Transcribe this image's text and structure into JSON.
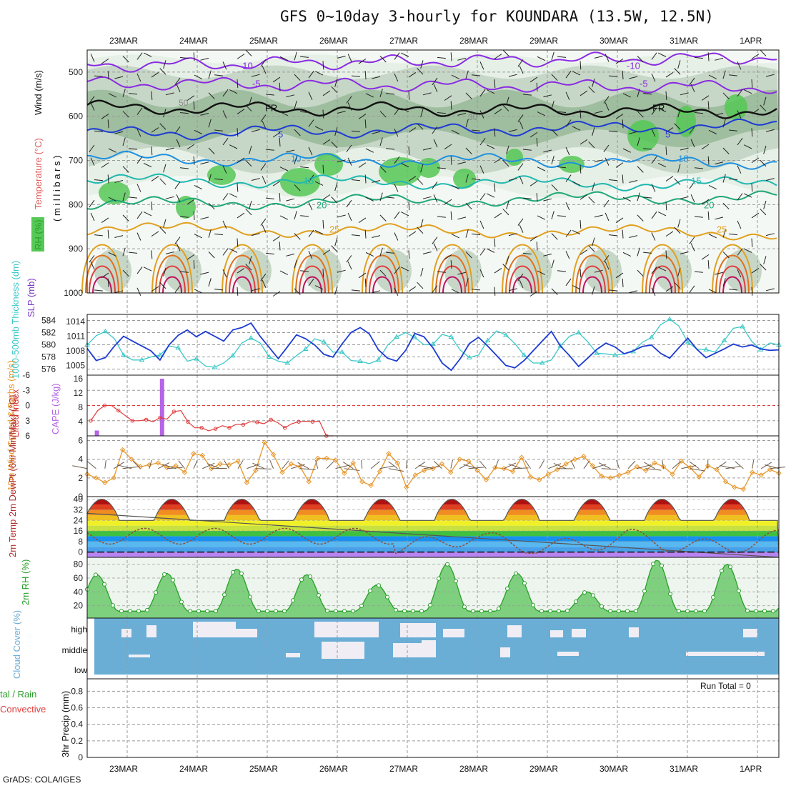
{
  "title": "GFS 0~10day 3-hourly for KOUNDARA (13.5W, 12.5N)",
  "footer": "GrADS: COLA/IGES",
  "run_total": "Run Total = 0",
  "colors": {
    "grid": "#9a9a9a",
    "rh_light": "#e6f0e6",
    "rh_mid": "#c7d7c7",
    "rh_dark": "#8fb28f",
    "rh_green": "#55c855",
    "slp": "#1e3cd2",
    "thickness": "#3cc8c8",
    "lifted": "#e03c3c",
    "cape": "#b464e6",
    "wind10m": "#e8962a",
    "rh2m": "#2aa02a",
    "cloud": "#6aaed6",
    "cloud_gap": "#f0eef4"
  },
  "chart_data": [
    {
      "type": "line",
      "panel": "Wind / Temperature / RH cross-section",
      "ylabel_parts": [
        "RH (%)",
        "Temperature (°C)",
        "Wind (m/s)"
      ],
      "ylabel_sub": "( m i l l i b a r s )",
      "x_dates": [
        "23MAR",
        "24MAR",
        "25MAR",
        "26MAR",
        "27MAR",
        "28MAR",
        "29MAR",
        "30MAR",
        "31MAR",
        "1APR"
      ],
      "y_ticks": [
        500,
        600,
        700,
        800,
        900,
        1000
      ],
      "ylim": [
        450,
        1000
      ],
      "isotherms": [
        {
          "label": "-10",
          "level_mb": 485,
          "color": "#8a2be2"
        },
        {
          "label": "-5",
          "level_mb": 525,
          "color": "#8a2be2"
        },
        {
          "label": "FR",
          "level_mb": 580,
          "color": "#111111"
        },
        {
          "label": "5",
          "level_mb": 640,
          "color": "#1e3cd2"
        },
        {
          "label": "10",
          "level_mb": 695,
          "color": "#1e90e0"
        },
        {
          "label": "15",
          "level_mb": 745,
          "color": "#20b8b0"
        },
        {
          "label": "20",
          "level_mb": 800,
          "color": "#20a878"
        },
        {
          "label": "25",
          "level_mb": 855,
          "color": "#e0a020"
        }
      ],
      "rh_contour_labels": [
        "30",
        "50"
      ]
    },
    {
      "type": "line",
      "panel": "SLP and 1000-500mb thickness",
      "ylabel_left": "1000-500mb Thickness (dm)",
      "ylabel_right": "SLP (mb)",
      "thickness_ticks": [
        576,
        578,
        580,
        582,
        584
      ],
      "slp_ticks": [
        1005,
        1008,
        1011,
        1014
      ],
      "series": [
        {
          "name": "SLP (mb)",
          "values": [
            1008.5,
            1006,
            1006.6,
            1009,
            1011,
            1010,
            1009,
            1008,
            1006.1,
            1009.2,
            1011.2,
            1012.3,
            1010.9,
            1012,
            1011,
            1010,
            1012.3,
            1012.8,
            1013.7,
            1011,
            1008.7,
            1006.4,
            1008.8,
            1011.3,
            1010.5,
            1009.2,
            1007.3,
            1006.7,
            1009.4,
            1011.8,
            1012.8,
            1011.5,
            1008.2,
            1006.5,
            1005.9,
            1008.1,
            1011.6,
            1010.9,
            1008.6,
            1005.5,
            1004,
            1006.4,
            1009.5,
            1010.8,
            1009,
            1007,
            1005,
            1004.5,
            1006,
            1008,
            1010,
            1012,
            1009,
            1007,
            1004.8,
            1006.5,
            1008.3,
            1009.6,
            1008.8,
            1007.4,
            1008,
            1008.9,
            1009.2,
            1007.5,
            1006.5,
            1008.6,
            1010.6,
            1008.3,
            1006.6,
            1007.5,
            1008.4,
            1009.4,
            1008.8,
            1009.2,
            1008.4,
            1008.1,
            1008.2
          ]
        },
        {
          "name": "Thickness (dm)",
          "values": [
            580,
            581.5,
            582.2,
            581,
            578.3,
            577.5,
            577.5,
            578,
            578.3,
            579.8,
            579.5,
            577.3,
            577.7,
            576.5,
            576.3,
            577,
            578.2,
            580.3,
            581.1,
            580.3,
            578,
            577.3,
            577,
            578.2,
            579.3,
            581,
            580.5,
            578.8,
            578.8,
            577.4,
            577.3,
            576.9,
            577.5,
            579.9,
            581.3,
            582,
            581.2,
            580,
            580.1,
            581.7,
            581.3,
            579.1,
            577.9,
            578.3,
            580.7,
            582.3,
            581.6,
            580.2,
            578.3,
            577,
            577,
            577.5,
            579.8,
            581.4,
            582,
            580.5,
            578.6,
            578.5,
            578.3,
            578.5,
            578.9,
            580.4,
            581.2,
            583.3,
            584.2,
            583.1,
            580.4,
            579.3,
            579.2,
            578.8,
            580.7,
            582.7,
            583,
            580.6,
            579.2,
            580.3,
            580
          ]
        }
      ]
    },
    {
      "type": "bar",
      "panel": "Lifted Index and CAPE",
      "ylabel_left": "Lifted Index",
      "ylabel_right": "CAPE (J/kg)",
      "li_ticks": [
        "-6",
        "-3",
        "0",
        "3",
        "6"
      ],
      "cape_ticks": [
        4,
        8,
        12,
        16
      ],
      "lifted_index": [
        3,
        1,
        0,
        0,
        1,
        2,
        3,
        3,
        2.8,
        3.2,
        2.4,
        2.7,
        1.2,
        1,
        3.2,
        4.4,
        4.4,
        5,
        4.6,
        4,
        4.4,
        3.7,
        3.8,
        3.2,
        3.3,
        3.6,
        2.8,
        3.4,
        4.4,
        3.6,
        3.2,
        3.1,
        3.2,
        3.1,
        6,
        6
      ],
      "cape": [
        {
          "time_index": 1,
          "value": 1.5
        },
        {
          "time_index": 13,
          "value": 16
        }
      ]
    },
    {
      "type": "line",
      "panel": "10m Wind Speed & Barbs",
      "ylabel": "10m Wind Speed & Barbs (m/s)",
      "y_ticks": [
        0,
        2,
        4,
        6
      ],
      "series": [
        {
          "name": "10m wind speed",
          "values": [
            2.4,
            2,
            1.5,
            2,
            5,
            4,
            3.2,
            3.4,
            3.6,
            3.1,
            3.3,
            2.6,
            4.6,
            4.4,
            3,
            3.5,
            3.4,
            3.8,
            1.5,
            2.8,
            5.8,
            4.5,
            2.6,
            3.5,
            3.2,
            1.6,
            4.1,
            4.1,
            3.9,
            2.5,
            3.6,
            1.6,
            1.2,
            2.7,
            4.6,
            3.6,
            1,
            2.3,
            2.8,
            3,
            3.5,
            2.6,
            4,
            3.8,
            2.8,
            1.8,
            3.1,
            3,
            2.7,
            4.2,
            2.1,
            1.8,
            2.4,
            2.9,
            3.5,
            4,
            4.3,
            3.3,
            2.2,
            2,
            2.3,
            2.6,
            3.2,
            2.8,
            3.6,
            3.2,
            2.4,
            3.8,
            3.1,
            2.1,
            3.3,
            2.9,
            1.6,
            1,
            0.8,
            2.6,
            2.3,
            2.9,
            2.5
          ]
        }
      ]
    },
    {
      "type": "area",
      "panel": "2m Temp / 2m DewPt (6hr Min/Max) (°C)",
      "ylabel": "2m Temp 2m DewPt (6hr Min/Max) (°C)",
      "y_ticks": [
        0,
        8,
        16,
        24,
        32,
        40
      ],
      "temperature_daily_min": 24,
      "temperature_daily_max": 40,
      "dewpoint_range": [
        -1,
        19
      ]
    },
    {
      "type": "area",
      "panel": "2m RH (%)",
      "ylabel": "2m RH (%)",
      "y_ticks": [
        20,
        40,
        60,
        80
      ],
      "daily_peaks": [
        65,
        67,
        73,
        65,
        50,
        80,
        67,
        40,
        86,
        80
      ],
      "daily_minimum": 12
    },
    {
      "type": "bar",
      "panel": "Cloud Cover (%)",
      "ylabel": "Cloud Cover (%)",
      "levels": [
        "high",
        "middle",
        "low"
      ]
    },
    {
      "type": "bar",
      "panel": "3hr Precip (mm)",
      "ylabel_left_1": "tal / Rain",
      "ylabel_left_2": "Convective",
      "ylabel": "3hr Precip (mm)",
      "y_ticks": [
        "0",
        "0.2",
        "0.4",
        "0.6",
        "0.8"
      ],
      "values": []
    }
  ]
}
